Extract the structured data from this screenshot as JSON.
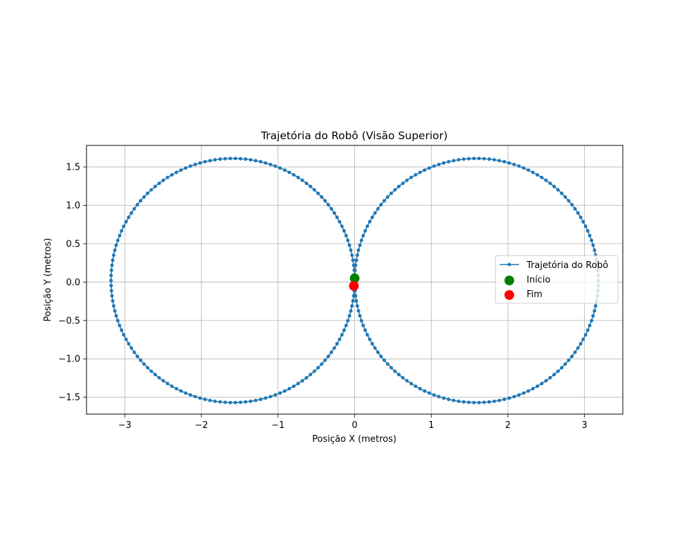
{
  "chart_data": {
    "type": "scatter",
    "title": "Trajetória do Robô (Visão Superior)",
    "xlabel": "Posição X (metros)",
    "ylabel": "Posição Y (metros)",
    "xlim": [
      -3.5,
      3.5
    ],
    "ylim": [
      -1.72,
      1.78
    ],
    "xticks": [
      -3,
      -2,
      -1,
      0,
      1,
      2,
      3
    ],
    "xtick_labels": [
      "−3",
      "−2",
      "−1",
      "0",
      "1",
      "2",
      "3"
    ],
    "yticks": [
      -1.5,
      -1.0,
      -0.5,
      0.0,
      0.5,
      1.0,
      1.5
    ],
    "ytick_labels": [
      "−1.5",
      "−1.0",
      "−0.5",
      "0.0",
      "0.5",
      "1.0",
      "1.5"
    ],
    "grid": true,
    "legend": "center-right",
    "series": [
      {
        "name": "Trajetória do Robô",
        "kind": "line-with-markers",
        "color": "#1f77b4",
        "shape": "figure-eight of two circles",
        "circles": [
          {
            "center": [
              1.59,
              0.02
            ],
            "radius": 1.59
          },
          {
            "center": [
              -1.59,
              0.02
            ],
            "radius": 1.59
          }
        ],
        "points_per_circle": 150
      },
      {
        "name": "Início",
        "kind": "point",
        "color": "#008000",
        "x": 0.0,
        "y": 0.05
      },
      {
        "name": "Fim",
        "kind": "point",
        "color": "#ff0000",
        "x": -0.01,
        "y": -0.05
      }
    ]
  }
}
